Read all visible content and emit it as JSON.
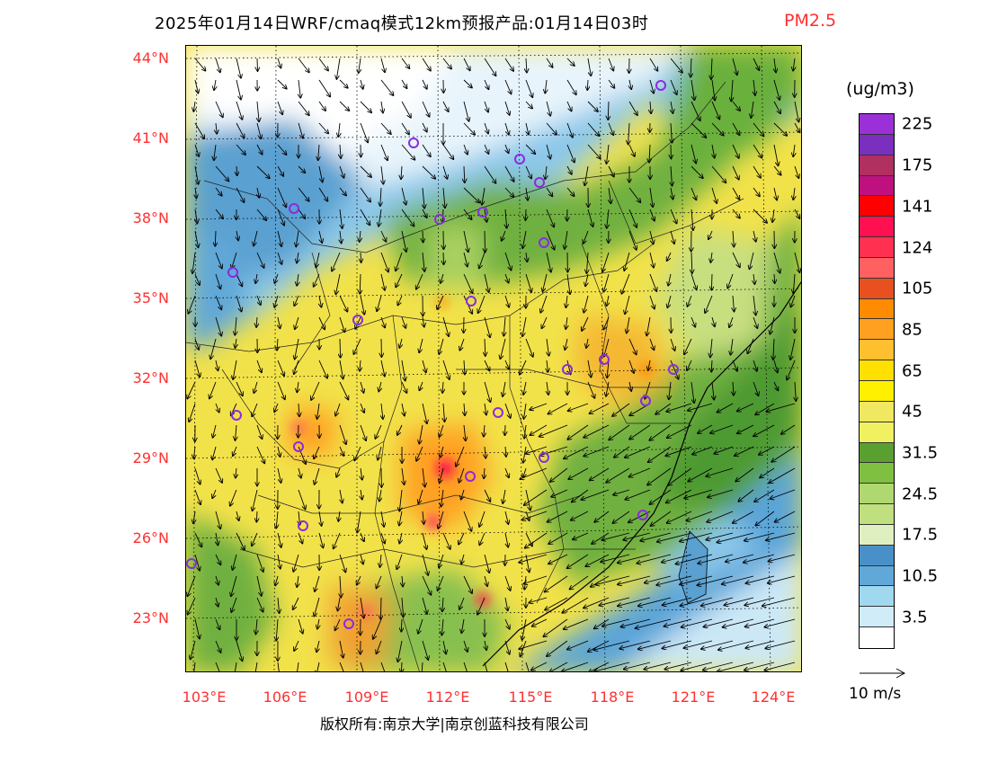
{
  "title": {
    "main": "2025年01月14日WRF/cmaq模式12km预报产品:01月14日03时",
    "species": "PM2.5"
  },
  "axes": {
    "lat_labels": [
      "44°N",
      "41°N",
      "38°N",
      "35°N",
      "32°N",
      "29°N",
      "26°N",
      "23°N"
    ],
    "lon_labels": [
      "103°E",
      "106°E",
      "109°E",
      "112°E",
      "115°E",
      "118°E",
      "121°E",
      "124°E"
    ],
    "lat_range": [
      21,
      44.5
    ],
    "lon_range": [
      102.7,
      124
    ]
  },
  "legend": {
    "units": "(ug/m3)",
    "levels": [
      {
        "label": "225",
        "color": "#9b30d9"
      },
      {
        "label": "",
        "color": "#7a2fbf"
      },
      {
        "label": "175",
        "color": "#b03060"
      },
      {
        "label": "",
        "color": "#c01080"
      },
      {
        "label": "141",
        "color": "#ff0000"
      },
      {
        "label": "",
        "color": "#ff1050"
      },
      {
        "label": "124",
        "color": "#ff3050"
      },
      {
        "label": "",
        "color": "#ff6060"
      },
      {
        "label": "105",
        "color": "#e85020"
      },
      {
        "label": "",
        "color": "#ff8c00"
      },
      {
        "label": "85",
        "color": "#ffa020"
      },
      {
        "label": "",
        "color": "#ffc030"
      },
      {
        "label": "65",
        "color": "#ffe000"
      },
      {
        "label": "",
        "color": "#fff000"
      },
      {
        "label": "45",
        "color": "#f0e860"
      },
      {
        "label": "",
        "color": "#f0f060"
      },
      {
        "label": "31.5",
        "color": "#5aa030"
      },
      {
        "label": "",
        "color": "#80c040"
      },
      {
        "label": "24.5",
        "color": "#b0d870"
      },
      {
        "label": "",
        "color": "#c0e080"
      },
      {
        "label": "17.5",
        "color": "#e0efc0"
      },
      {
        "label": "",
        "color": "#4a90c8"
      },
      {
        "label": "10.5",
        "color": "#60a8d8"
      },
      {
        "label": "",
        "color": "#a0d8f0"
      },
      {
        "label": "3.5",
        "color": "#d0ecf8"
      },
      {
        "label": "",
        "color": "#ffffff"
      }
    ]
  },
  "wind_reference": {
    "label": "10 m/s"
  },
  "copyright": "版权所有:南京大学|南京创蓝科技有限公司",
  "stations": [
    "",
    "",
    "",
    "",
    "",
    "",
    "",
    "",
    "",
    "",
    "",
    "",
    "",
    "",
    "",
    "",
    "",
    "",
    "",
    "",
    "",
    "",
    "",
    ""
  ],
  "colors": {
    "axis_label": "#ff3030",
    "station_marker": "#8a2be2"
  }
}
